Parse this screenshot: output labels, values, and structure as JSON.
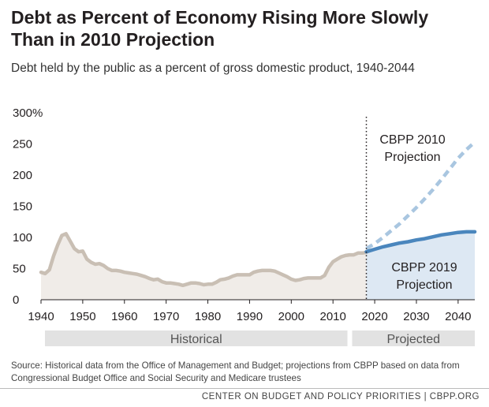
{
  "title": "Debt as Percent of Economy Rising More Slowly Than in 2010 Projection",
  "subtitle": "Debt held by the public as a percent of gross domestic product, 1940-2044",
  "source": "Source: Historical data from the Office of Management and Budget; projections from CBPP based on data from Congressional Budget Office and Social Security and Medicare trustees",
  "footer": "CENTER ON BUDGET AND POLICY PRIORITIES | CBPP.ORG",
  "colors": {
    "historical": "#c9bfb4",
    "historical_fill": "#f0ece8",
    "projection_2019": "#4a86bd",
    "projection_2019_fill": "#dde8f3",
    "projection_2010": "#a9c6e0",
    "band": "#e2e2e2"
  },
  "chart_data": {
    "type": "line",
    "xlim": [
      1940,
      2044
    ],
    "ylim": [
      0,
      300
    ],
    "y_ticks": [
      0,
      50,
      100,
      150,
      200,
      250,
      300
    ],
    "y_tick_labels": [
      "0",
      "50",
      "100",
      "150",
      "200",
      "250",
      "300%"
    ],
    "x_ticks": [
      1940,
      1950,
      1960,
      1970,
      1980,
      1990,
      2000,
      2010,
      2020,
      2030,
      2040
    ],
    "x_tick_labels": [
      "1940",
      "1950",
      "1960",
      "1970",
      "1980",
      "1990",
      "2000",
      "2010",
      "2020",
      "2030",
      "2040"
    ],
    "divider_year": 2018,
    "period_labels": {
      "historical": "Historical",
      "projected": "Projected"
    },
    "annotations": {
      "projection_2010": [
        "CBPP 2010",
        "Projection"
      ],
      "projection_2019": [
        "CBPP 2019",
        "Projection"
      ]
    },
    "series": [
      {
        "name": "Historical",
        "x": [
          1940,
          1941,
          1942,
          1943,
          1944,
          1945,
          1946,
          1947,
          1948,
          1949,
          1950,
          1951,
          1952,
          1953,
          1954,
          1955,
          1956,
          1957,
          1958,
          1959,
          1960,
          1961,
          1962,
          1963,
          1964,
          1965,
          1966,
          1967,
          1968,
          1969,
          1970,
          1971,
          1972,
          1973,
          1974,
          1975,
          1976,
          1977,
          1978,
          1979,
          1980,
          1981,
          1982,
          1983,
          1984,
          1985,
          1986,
          1987,
          1988,
          1989,
          1990,
          1991,
          1992,
          1993,
          1994,
          1995,
          1996,
          1997,
          1998,
          1999,
          2000,
          2001,
          2002,
          2003,
          2004,
          2005,
          2006,
          2007,
          2008,
          2009,
          2010,
          2011,
          2012,
          2013,
          2014,
          2015,
          2016,
          2017,
          2018
        ],
        "values": [
          44,
          42,
          48,
          70,
          88,
          103,
          106,
          94,
          82,
          77,
          78,
          65,
          60,
          57,
          58,
          55,
          50,
          47,
          47,
          46,
          44,
          43,
          42,
          41,
          39,
          37,
          34,
          32,
          33,
          29,
          27,
          27,
          26,
          25,
          23,
          25,
          27,
          27,
          26,
          24,
          25,
          25,
          28,
          32,
          33,
          35,
          38,
          40,
          40,
          40,
          40,
          44,
          46,
          47,
          47,
          47,
          46,
          43,
          40,
          37,
          33,
          31,
          32,
          34,
          35,
          35,
          35,
          35,
          39,
          52,
          61,
          65,
          69,
          71,
          72,
          72,
          75,
          75,
          76
        ]
      },
      {
        "name": "CBPP 2019 Projection",
        "x": [
          2018,
          2020,
          2022,
          2024,
          2026,
          2028,
          2030,
          2032,
          2034,
          2036,
          2038,
          2040,
          2042,
          2044
        ],
        "values": [
          77,
          81,
          85,
          88,
          91,
          93,
          96,
          98,
          101,
          104,
          106,
          108,
          109,
          109
        ]
      },
      {
        "name": "CBPP 2010 Projection",
        "x": [
          2018,
          2020,
          2022,
          2024,
          2026,
          2028,
          2030,
          2032,
          2034,
          2036,
          2038,
          2040,
          2042,
          2044
        ],
        "values": [
          82,
          90,
          100,
          111,
          122,
          135,
          148,
          162,
          177,
          193,
          210,
          227,
          241,
          253
        ]
      }
    ]
  }
}
